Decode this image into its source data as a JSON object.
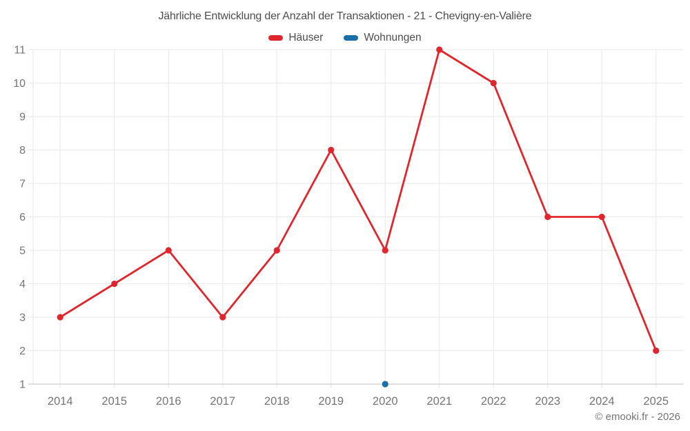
{
  "title": "Jährliche Entwicklung der Anzahl der Transaktionen - 21 - Chevigny-en-Valière",
  "copyright": "© emooki.fr - 2026",
  "legend": {
    "items": [
      {
        "label": "Häuser",
        "color": "#e0262c"
      },
      {
        "label": "Wohnungen",
        "color": "#1b6fa9"
      }
    ]
  },
  "colors": {
    "grid": "#ececec",
    "axis": "#cccccc",
    "tick_label": "#757575",
    "title_text": "#4d4d4d",
    "background": "#ffffff"
  },
  "chart_data": {
    "type": "line",
    "title": "Jährliche Entwicklung der Anzahl der Transaktionen - 21 - Chevigny-en-Valière",
    "categories": [
      "2014",
      "2015",
      "2016",
      "2017",
      "2018",
      "2019",
      "2020",
      "2021",
      "2022",
      "2023",
      "2024",
      "2025"
    ],
    "series": [
      {
        "name": "Häuser",
        "color": "#e0262c",
        "values": [
          3,
          4,
          5,
          3,
          5,
          8,
          5,
          11,
          10,
          6,
          6,
          2
        ]
      },
      {
        "name": "Wohnungen",
        "color": "#1b6fa9",
        "values": [
          null,
          null,
          null,
          null,
          null,
          null,
          1,
          null,
          null,
          null,
          null,
          null
        ]
      }
    ],
    "xlabel": "",
    "ylabel": "",
    "ylim": [
      1,
      11
    ],
    "yticks": [
      1,
      2,
      3,
      4,
      5,
      6,
      7,
      8,
      9,
      10,
      11
    ],
    "grid": true,
    "legend_position": "top",
    "marker": "circle"
  }
}
